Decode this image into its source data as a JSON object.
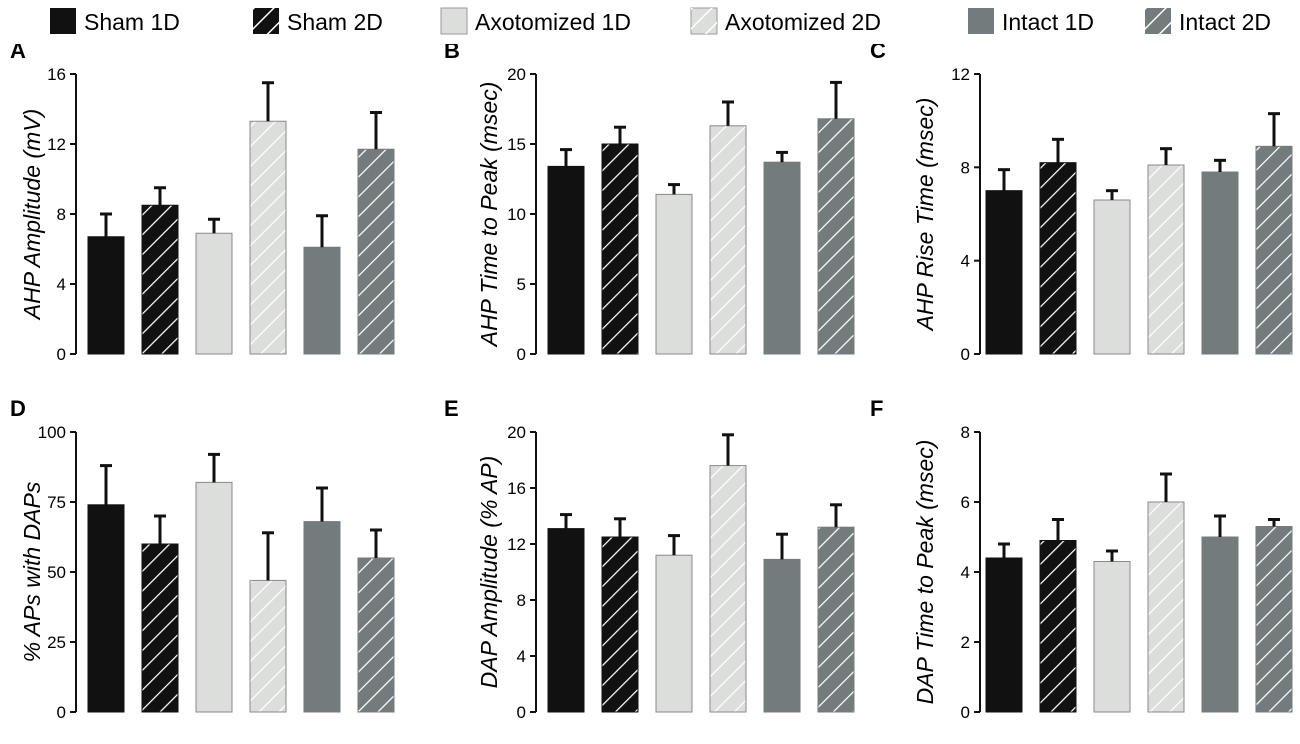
{
  "colors": {
    "sham": "#111111",
    "axotomized": "#dcdedb",
    "intact": "#737b7c",
    "error_bar": "#111111",
    "axis": "#111111"
  },
  "legend": [
    {
      "label": "Sham 1D",
      "group": "sham",
      "hatched": false
    },
    {
      "label": "Sham 2D",
      "group": "sham",
      "hatched": true
    },
    {
      "label": "Axotomized 1D",
      "group": "axotomized",
      "hatched": false
    },
    {
      "label": "Axotomized 2D",
      "group": "axotomized",
      "hatched": true
    },
    {
      "label": "Intact 1D",
      "group": "intact",
      "hatched": false
    },
    {
      "label": "Intact 2D",
      "group": "intact",
      "hatched": true
    }
  ],
  "chart_data": [
    {
      "panel": "A",
      "type": "bar",
      "ylabel": "AHP Amplitude (mV)",
      "ylim": [
        0,
        16
      ],
      "yticks": [
        "0",
        "4",
        "8",
        "12",
        "16"
      ],
      "values": [
        6.7,
        8.5,
        6.9,
        13.3,
        6.1,
        11.7
      ],
      "errors": [
        1.3,
        1.0,
        0.8,
        2.2,
        1.8,
        2.1
      ]
    },
    {
      "panel": "B",
      "type": "bar",
      "ylabel": "AHP Time to Peak (msec)",
      "ylim": [
        0,
        20
      ],
      "yticks": [
        "0",
        "5",
        "10",
        "15",
        "20"
      ],
      "values": [
        13.4,
        15.0,
        11.4,
        16.3,
        13.7,
        16.8
      ],
      "errors": [
        1.2,
        1.2,
        0.7,
        1.7,
        0.7,
        2.6
      ]
    },
    {
      "panel": "C",
      "type": "bar",
      "ylabel": "AHP  Rise Time (msec)",
      "ylim": [
        0,
        12
      ],
      "yticks": [
        "0",
        "4",
        "8",
        "12"
      ],
      "values": [
        7.0,
        8.2,
        6.6,
        8.1,
        7.8,
        8.9
      ],
      "errors": [
        0.9,
        1.0,
        0.4,
        0.7,
        0.5,
        1.4
      ]
    },
    {
      "panel": "D",
      "type": "bar",
      "ylabel": "% APs with DAPs",
      "ylim": [
        0,
        100
      ],
      "yticks": [
        "0",
        "25",
        "50",
        "75",
        "100"
      ],
      "values": [
        74,
        60,
        82,
        47,
        68,
        55
      ],
      "errors": [
        14,
        10,
        10,
        17,
        12,
        10
      ]
    },
    {
      "panel": "E",
      "type": "bar",
      "ylabel": "DAP Amplitude (% AP)",
      "ylim": [
        0,
        20
      ],
      "yticks": [
        "0",
        "4",
        "8",
        "12",
        "16",
        "20"
      ],
      "values": [
        13.1,
        12.5,
        11.2,
        17.6,
        10.9,
        13.2
      ],
      "errors": [
        1.0,
        1.3,
        1.4,
        2.2,
        1.8,
        1.6
      ]
    },
    {
      "panel": "F",
      "type": "bar",
      "ylabel": "DAP Time to Peak  (msec)",
      "ylim": [
        0,
        8
      ],
      "yticks": [
        "0",
        "2",
        "4",
        "6",
        "8"
      ],
      "values": [
        4.4,
        4.9,
        4.3,
        6.0,
        5.0,
        5.3
      ],
      "errors": [
        0.4,
        0.6,
        0.3,
        0.8,
        0.6,
        0.2
      ]
    }
  ]
}
